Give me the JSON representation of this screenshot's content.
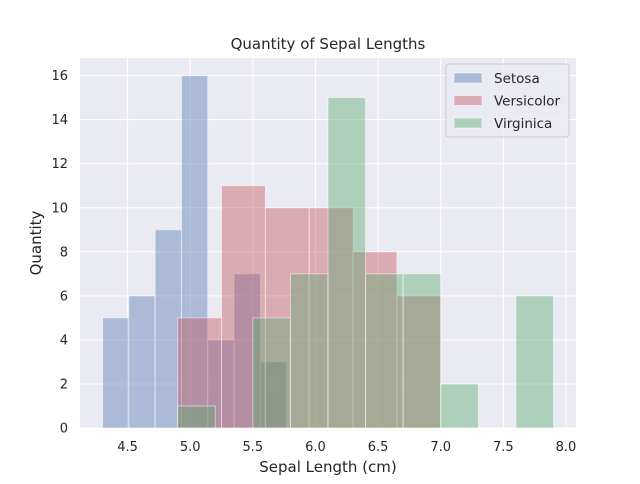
{
  "chart_data": {
    "type": "histogram",
    "title": "Quantity of Sepal Lengths",
    "xlabel": "Sepal Length (cm)",
    "ylabel": "Quantity",
    "xlim": [
      4.12,
      8.08
    ],
    "ylim": [
      0,
      16.8
    ],
    "x_ticks": [
      4.5,
      5.0,
      5.5,
      6.0,
      6.5,
      7.0,
      7.5,
      8.0
    ],
    "x_tick_labels": [
      "4.5",
      "5.0",
      "5.5",
      "6.0",
      "6.5",
      "7.0",
      "7.5",
      "8.0"
    ],
    "y_ticks": [
      0,
      2,
      4,
      6,
      8,
      10,
      12,
      14,
      16
    ],
    "y_tick_labels": [
      "0",
      "2",
      "4",
      "6",
      "8",
      "10",
      "12",
      "14",
      "16"
    ],
    "grid": true,
    "legend_position": "top-right",
    "background_color": "#EAEAF2",
    "series": [
      {
        "name": "Setosa",
        "color": "#4C72B0",
        "bin_edges": [
          4.3,
          4.51,
          4.72,
          4.93,
          5.14,
          5.35,
          5.56,
          5.77
        ],
        "counts": [
          5,
          6,
          9,
          16,
          4,
          7,
          3
        ]
      },
      {
        "name": "Versicolor",
        "color": "#C44E52",
        "bin_edges": [
          4.9,
          5.25,
          5.6,
          5.95,
          6.3,
          6.65,
          7.0
        ],
        "counts": [
          5,
          11,
          10,
          10,
          8,
          6
        ]
      },
      {
        "name": "Virginica",
        "color": "#55A868",
        "bin_edges": [
          4.9,
          5.2,
          5.5,
          5.8,
          6.1,
          6.4,
          6.7,
          7.0,
          7.3,
          7.6,
          7.9
        ],
        "counts": [
          1,
          0,
          5,
          7,
          15,
          7,
          7,
          2,
          0,
          6
        ]
      }
    ]
  }
}
